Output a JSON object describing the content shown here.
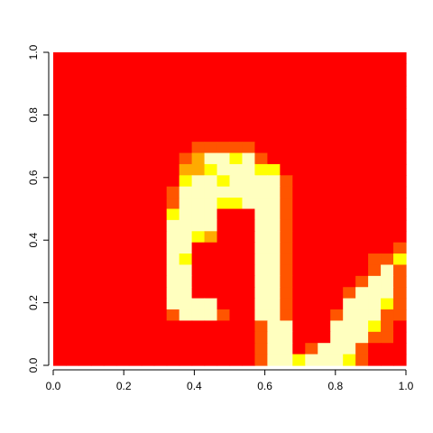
{
  "chart_data": {
    "type": "heatmap",
    "title": "",
    "xlabel": "",
    "ylabel": "",
    "xlim": [
      0,
      1
    ],
    "ylim": [
      0,
      1
    ],
    "x_ticks": [
      0.0,
      0.2,
      0.4,
      0.6,
      0.8,
      1.0
    ],
    "x_tick_labels": [
      "0.0",
      "0.2",
      "0.4",
      "0.6",
      "0.8",
      "1.0"
    ],
    "y_ticks": [
      0.0,
      0.2,
      0.4,
      0.6,
      0.8,
      1.0
    ],
    "y_tick_labels": [
      "0.0",
      "0.2",
      "0.4",
      "0.6",
      "0.8",
      "1.0"
    ],
    "grid": false,
    "nrows": 28,
    "ncols": 28,
    "colormap": "heat.colors",
    "palette": [
      "#FF0000",
      "#FF5500",
      "#FFAA00",
      "#FFFF00",
      "#FFFFBF"
    ],
    "levels_key": "0 = red background, 1 = orange-red, 2 = orange, 3 = yellow, 4 = pale yellow (highest)",
    "rows_top_to_bottom": [
      "0000000000000000000000000000",
      "0000000000000000000000000000",
      "0000000000000000000000000000",
      "0000000000000000000000000000",
      "0000000000000000000000000000",
      "0000000000000000000000000000",
      "0000000000000000000000000000",
      "0000000000000000000000000000",
      "0000000000011111000000000000",
      "0000000000124434100000000000",
      "0000000000223444330000000000",
      "0000000000344344441000000000",
      "0000000001444444441000000000",
      "0000000001444334441000000000",
      "0000000003444000441000000000",
      "0000000004444000441000000000",
      "0000000004432000441000000000",
      "0000000004400000441000000001",
      "0000000004300000441000000113",
      "0000000004400000441000000141",
      "0000000004400000441000001441",
      "0000000004400000441000014441",
      "0000000004444000441000044431",
      "0000000001444100441000144411",
      "0000000000000000144000444310",
      "0000000000000000144000444110",
      "0000000000000000144014441000",
      "0000000000000000144344431000"
    ]
  }
}
